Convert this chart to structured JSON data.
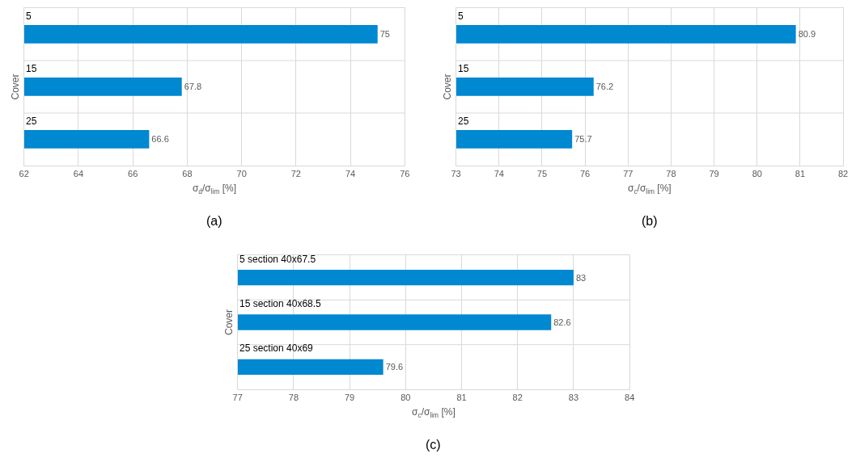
{
  "chart_data": [
    {
      "type": "bar",
      "orientation": "horizontal",
      "categories": [
        "5",
        "15",
        "25"
      ],
      "values": [
        75,
        67.8,
        66.6
      ],
      "color": "#0088d1",
      "xlim": [
        62,
        76
      ],
      "xticks": [
        62,
        64,
        66,
        68,
        70,
        72,
        74,
        76
      ],
      "xlabel": "σ$_{d}$/σ$_{lim}$ [%]",
      "ylabel": "Cover",
      "data_labels": true,
      "grid": true,
      "annotations": [
        "(a)"
      ]
    },
    {
      "type": "bar",
      "orientation": "horizontal",
      "categories": [
        "5",
        "15",
        "25"
      ],
      "values": [
        80.9,
        76.2,
        75.7
      ],
      "color": "#0088d1",
      "xlim": [
        73,
        82
      ],
      "xticks": [
        73,
        74,
        75,
        76,
        77,
        78,
        79,
        80,
        81,
        82
      ],
      "xlabel": "σ$_{c}$/σ$_{lim}$ [%]",
      "ylabel": "Cover",
      "data_labels": true,
      "grid": true,
      "annotations": [
        "(b)"
      ]
    },
    {
      "type": "bar",
      "orientation": "horizontal",
      "categories": [
        "5 section 40x67.5",
        "15 section 40x68.5",
        "25 section 40x69"
      ],
      "values": [
        83,
        82.6,
        79.6
      ],
      "color": "#0088d1",
      "xlim": [
        77,
        84
      ],
      "xticks": [
        77,
        78,
        79,
        80,
        81,
        82,
        83,
        84
      ],
      "xlabel": "σ$_{c}$/σ$_{lim}$ [%]",
      "ylabel": "Cover",
      "data_labels": true,
      "grid": true,
      "annotations": [
        "(c)"
      ]
    }
  ]
}
